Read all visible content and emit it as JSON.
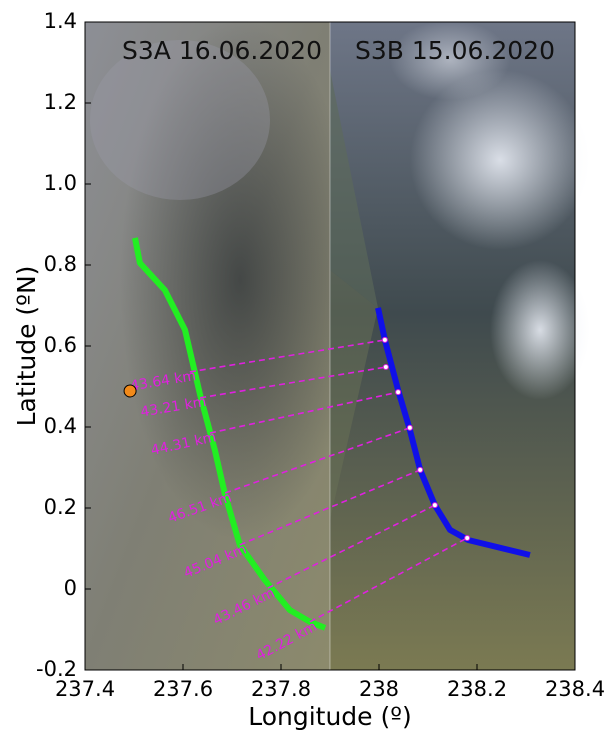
{
  "chart_data": {
    "type": "line",
    "panel_titles": [
      "S3A 16.06.2020",
      "S3B 15.06.2020"
    ],
    "xlabel": "Longitude (º)",
    "ylabel": "Latitude (ºN)",
    "xlim": [
      237.4,
      238.4
    ],
    "ylim": [
      -0.2,
      1.4
    ],
    "xticks": [
      237.4,
      237.6,
      237.8,
      238,
      238.2,
      238.4
    ],
    "yticks": [
      -0.2,
      0,
      0.2,
      0.4,
      0.6,
      0.8,
      {
        "value": 1,
        "label": "1.0"
      },
      1.2,
      1.4
    ],
    "series": [
      {
        "color": "#22ee22",
        "x": [
          237.502,
          237.512,
          237.563,
          237.604,
          237.635,
          237.665,
          237.686,
          237.716,
          237.767,
          237.818,
          237.859,
          237.89
        ],
        "values": [
          0.867,
          0.805,
          0.738,
          0.64,
          0.479,
          0.343,
          0.232,
          0.109,
          0.022,
          -0.052,
          -0.081,
          -0.096
        ]
      },
      {
        "color": "#1010e8",
        "x": [
          237.998,
          238.012,
          238.039,
          238.063,
          238.084,
          238.114,
          238.145,
          238.182,
          238.308
        ],
        "values": [
          0.694,
          0.615,
          0.491,
          0.393,
          0.294,
          0.207,
          0.146,
          0.121,
          0.084
        ]
      }
    ],
    "segments": [
      {
        "label": "43.64 km",
        "x": [
          237.614,
          238.012
        ],
        "values": [
          0.536,
          0.615
        ]
      },
      {
        "label": "43.21 km",
        "x": [
          237.635,
          238.014
        ],
        "values": [
          0.472,
          0.548
        ]
      },
      {
        "label": "44.31 km",
        "x": [
          237.655,
          238.039
        ],
        "values": [
          0.385,
          0.486
        ]
      },
      {
        "label": "46.51 km",
        "x": [
          237.686,
          238.063
        ],
        "values": [
          0.237,
          0.398
        ]
      },
      {
        "label": "45.04 km",
        "x": [
          237.716,
          238.084
        ],
        "values": [
          0.109,
          0.294
        ]
      },
      {
        "label": "43.46 km",
        "x": [
          237.773,
          238.114
        ],
        "values": [
          0.002,
          0.207
        ]
      },
      {
        "label": "42.22 km",
        "x": [
          237.859,
          238.18
        ],
        "values": [
          -0.081,
          0.126
        ]
      }
    ],
    "segment_color": "#e020e0",
    "marker": {
      "x": 237.492,
      "y": 0.489,
      "color": "#f28a1a"
    },
    "divider_x": 237.9
  }
}
